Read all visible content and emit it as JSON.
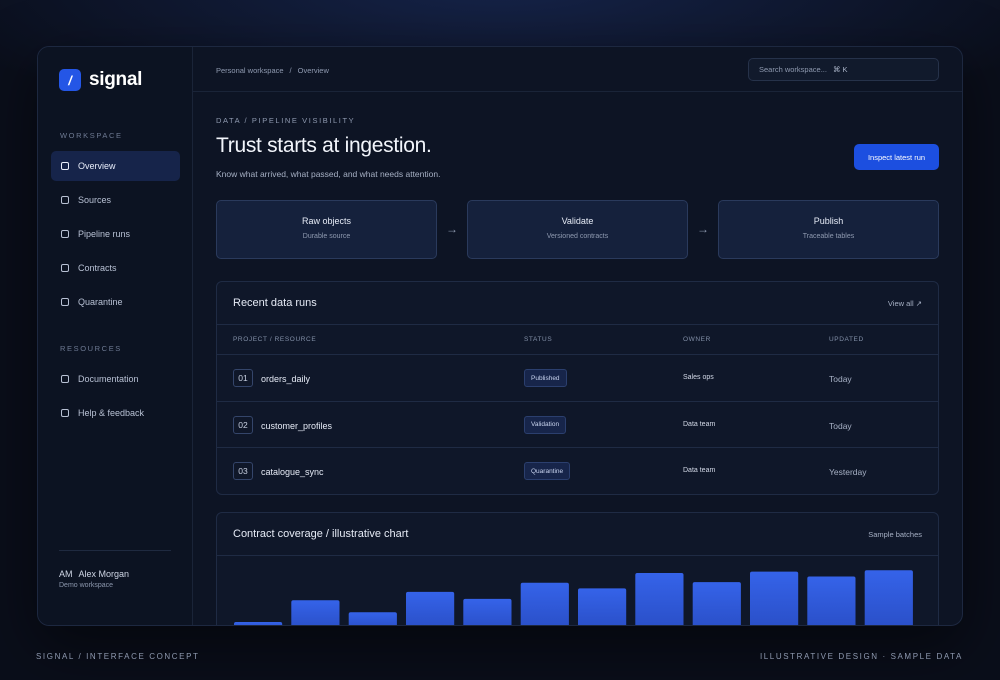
{
  "brand": {
    "mark": "/",
    "name": "signal"
  },
  "sidebar": {
    "workspace_label": "WORKSPACE",
    "workspace_items": [
      {
        "label": "Overview",
        "active": true
      },
      {
        "label": "Sources"
      },
      {
        "label": "Pipeline runs"
      },
      {
        "label": "Contracts"
      },
      {
        "label": "Quarantine"
      }
    ],
    "resources_label": "RESOURCES",
    "resource_items": [
      {
        "label": "Documentation"
      },
      {
        "label": "Help & feedback"
      }
    ],
    "user": {
      "initials": "AM",
      "name": "Alex Morgan",
      "workspace": "Demo workspace"
    }
  },
  "topbar": {
    "breadcrumb": [
      "Personal workspace",
      "/",
      "Overview"
    ],
    "search_placeholder": "Search workspace...",
    "search_shortcut": "⌘ K"
  },
  "header": {
    "eyebrow": "DATA / PIPELINE VISIBILITY",
    "title": "Trust starts at ingestion.",
    "subtitle": "Know what arrived, what passed, and what needs attention.",
    "cta": "Inspect latest run"
  },
  "pipeline": [
    {
      "title": "Raw objects",
      "subtitle": "Durable source"
    },
    {
      "title": "Validate",
      "subtitle": "Versioned contracts"
    },
    {
      "title": "Publish",
      "subtitle": "Traceable tables"
    }
  ],
  "runs": {
    "title": "Recent data runs",
    "link": "View all ↗",
    "columns": [
      "PROJECT / RESOURCE",
      "STATUS",
      "OWNER",
      "UPDATED"
    ],
    "rows": [
      {
        "num": "01",
        "name": "orders_daily",
        "status": "Published",
        "owner": "Sales ops",
        "updated": "Today"
      },
      {
        "num": "02",
        "name": "customer_profiles",
        "status": "Validation",
        "owner": "Data team",
        "updated": "Today"
      },
      {
        "num": "03",
        "name": "catalogue_sync",
        "status": "Quarantine",
        "owner": "Data team",
        "updated": "Yesterday"
      }
    ]
  },
  "coverage": {
    "title": "Contract coverage / illustrative chart",
    "link": "Sample batches"
  },
  "chart_data": {
    "type": "bar",
    "values": [
      10,
      41,
      24,
      53,
      43,
      66,
      58,
      80,
      67,
      82,
      75,
      84
    ],
    "ylim": [
      0,
      100
    ],
    "color": "#3563e9"
  },
  "footer": {
    "left": "SIGNAL / INTERFACE CONCEPT",
    "right": "ILLUSTRATIVE DESIGN · SAMPLE DATA"
  }
}
